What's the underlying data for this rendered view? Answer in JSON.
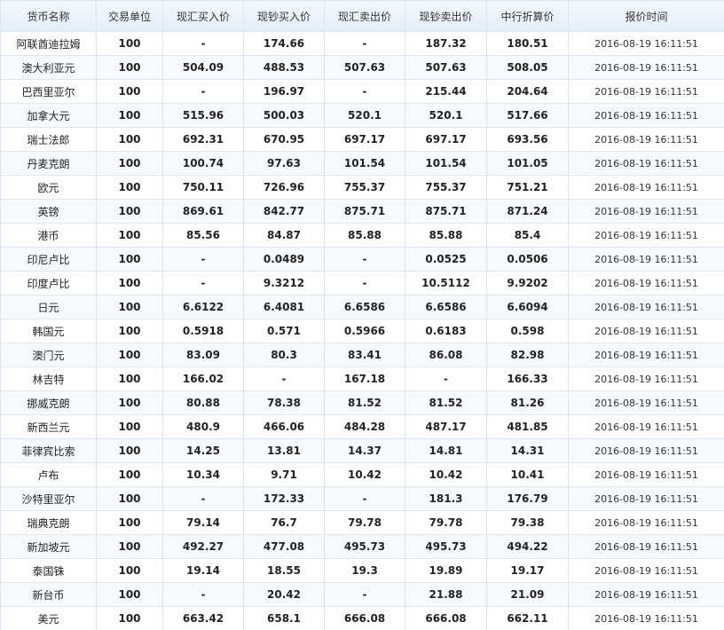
{
  "header": {
    "columns": [
      "货币名称",
      "交易单位",
      "现汇买入价",
      "现钞买入价",
      "现汇卖出价",
      "现钞卖出价",
      "中行折算价",
      "报价时间"
    ]
  },
  "table": {
    "rows": [
      [
        "阿联酋迪拉姆",
        "100",
        "-",
        "174.66",
        "-",
        "187.32",
        "180.51",
        "2016-08-19 16:11:51"
      ],
      [
        "澳大利亚元",
        "100",
        "504.09",
        "488.53",
        "507.63",
        "507.63",
        "508.05",
        "2016-08-19 16:11:51"
      ],
      [
        "巴西里亚尔",
        "100",
        "-",
        "196.97",
        "-",
        "215.44",
        "204.64",
        "2016-08-19 16:11:51"
      ],
      [
        "加拿大元",
        "100",
        "515.96",
        "500.03",
        "520.1",
        "520.1",
        "517.66",
        "2016-08-19 16:11:51"
      ],
      [
        "瑞士法郎",
        "100",
        "692.31",
        "670.95",
        "697.17",
        "697.17",
        "693.56",
        "2016-08-19 16:11:51"
      ],
      [
        "丹麦克朗",
        "100",
        "100.74",
        "97.63",
        "101.54",
        "101.54",
        "101.05",
        "2016-08-19 16:11:51"
      ],
      [
        "欧元",
        "100",
        "750.11",
        "726.96",
        "755.37",
        "755.37",
        "751.21",
        "2016-08-19 16:11:51"
      ],
      [
        "英镑",
        "100",
        "869.61",
        "842.77",
        "875.71",
        "875.71",
        "871.24",
        "2016-08-19 16:11:51"
      ],
      [
        "港币",
        "100",
        "85.56",
        "84.87",
        "85.88",
        "85.88",
        "85.4",
        "2016-08-19 16:11:51"
      ],
      [
        "印尼卢比",
        "100",
        "-",
        "0.0489",
        "-",
        "0.0525",
        "0.0506",
        "2016-08-19 16:11:51"
      ],
      [
        "印度卢比",
        "100",
        "-",
        "9.3212",
        "-",
        "10.5112",
        "9.9202",
        "2016-08-19 16:11:51"
      ],
      [
        "日元",
        "100",
        "6.6122",
        "6.4081",
        "6.6586",
        "6.6586",
        "6.6094",
        "2016-08-19 16:11:51"
      ],
      [
        "韩国元",
        "100",
        "0.5918",
        "0.571",
        "0.5966",
        "0.6183",
        "0.598",
        "2016-08-19 16:11:51"
      ],
      [
        "澳门元",
        "100",
        "83.09",
        "80.3",
        "83.41",
        "86.08",
        "82.98",
        "2016-08-19 16:11:51"
      ],
      [
        "林吉特",
        "100",
        "166.02",
        "-",
        "167.18",
        "-",
        "166.33",
        "2016-08-19 16:11:51"
      ],
      [
        "挪威克朗",
        "100",
        "80.88",
        "78.38",
        "81.52",
        "81.52",
        "81.26",
        "2016-08-19 16:11:51"
      ],
      [
        "新西兰元",
        "100",
        "480.9",
        "466.06",
        "484.28",
        "487.17",
        "481.85",
        "2016-08-19 16:11:51"
      ],
      [
        "菲律宾比索",
        "100",
        "14.25",
        "13.81",
        "14.37",
        "14.81",
        "14.31",
        "2016-08-19 16:11:51"
      ],
      [
        "卢布",
        "100",
        "10.34",
        "9.71",
        "10.42",
        "10.42",
        "10.41",
        "2016-08-19 16:11:51"
      ],
      [
        "沙特里亚尔",
        "100",
        "-",
        "172.33",
        "-",
        "181.3",
        "176.79",
        "2016-08-19 16:11:51"
      ],
      [
        "瑞典克朗",
        "100",
        "79.14",
        "76.7",
        "79.78",
        "79.78",
        "79.38",
        "2016-08-19 16:11:51"
      ],
      [
        "新加坡元",
        "100",
        "492.27",
        "477.08",
        "495.73",
        "495.73",
        "494.22",
        "2016-08-19 16:11:51"
      ],
      [
        "泰国铢",
        "100",
        "19.14",
        "18.55",
        "19.3",
        "19.89",
        "19.17",
        "2016-08-19 16:11:51"
      ],
      [
        "新台币",
        "100",
        "-",
        "20.42",
        "-",
        "21.88",
        "21.09",
        "2016-08-19 16:11:51"
      ],
      [
        "美元",
        "100",
        "663.42",
        "658.1",
        "666.08",
        "666.08",
        "662.11",
        "2016-08-19 16:11:51"
      ]
    ]
  }
}
